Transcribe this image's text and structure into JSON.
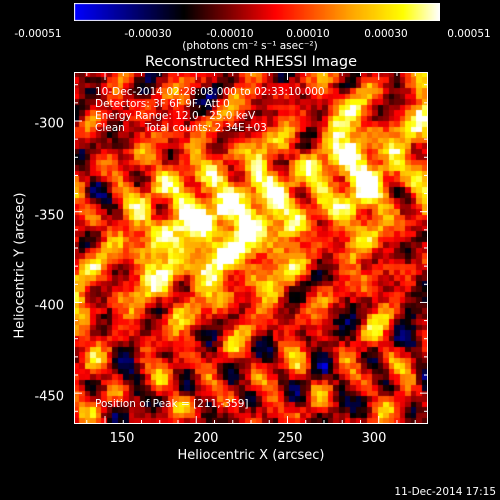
{
  "colors": {
    "colormap": [
      "#0000ff",
      "#000000",
      "#ff0000",
      "#ffa000",
      "#ffff00",
      "#ffffff"
    ],
    "background": "#000000",
    "foreground": "#ffffff"
  },
  "colorbar": {
    "tick_labels": [
      "-0.00051",
      "-0.00030",
      "-0.00010",
      "0.00010",
      "0.00030",
      "0.00051"
    ],
    "units": "(photons cm⁻² s⁻¹ asec⁻²)"
  },
  "chart_data": {
    "type": "heatmap",
    "title": "Reconstructed RHESSI Image",
    "xlabel": "Heliocentric X (arcsec)",
    "ylabel": "Heliocentric Y (arcsec)",
    "xlim": [
      133,
      327
    ],
    "ylim": [
      -467,
      -273
    ],
    "xticks": [
      "150",
      "200",
      "250",
      "300"
    ],
    "yticks": [
      "-300",
      "-350",
      "-400",
      "-450"
    ],
    "zlim": [
      -0.00051,
      0.00051
    ],
    "peak": {
      "x": 211,
      "y": -359
    },
    "annotations": [
      "10-Dec-2014 02:28:08.000 to 02:33:10.000",
      "Detectors: 3F 6F 9F, Att 0",
      "Energy Range: 12.0 - 25.0 keV",
      "Clean      Total counts: 2.34E+03"
    ],
    "peak_label": "Position of Peak = [211,-359]"
  },
  "footer": {
    "timestamp": "11-Dec-2014 17:15"
  }
}
